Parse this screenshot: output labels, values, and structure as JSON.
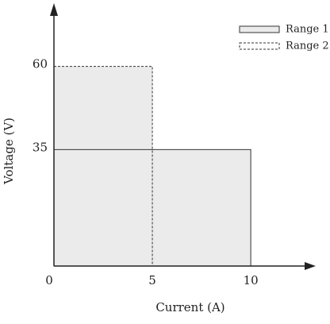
{
  "chart_data": {
    "type": "operating-range",
    "x_label": "Current (A)",
    "y_label": "Voltage (V)",
    "xlim": [
      0,
      13.3
    ],
    "ylim": [
      0,
      79
    ],
    "xticks": [
      0,
      5,
      10
    ],
    "yticks": [
      35,
      60
    ],
    "series": [
      {
        "name": "Range 1",
        "style": "solid",
        "color": "#ebebeb",
        "current": 10,
        "voltage": 35
      },
      {
        "name": "Range 2",
        "style": "dashed",
        "color": "#ebebeb",
        "current": 5,
        "voltage": 60
      }
    ]
  }
}
